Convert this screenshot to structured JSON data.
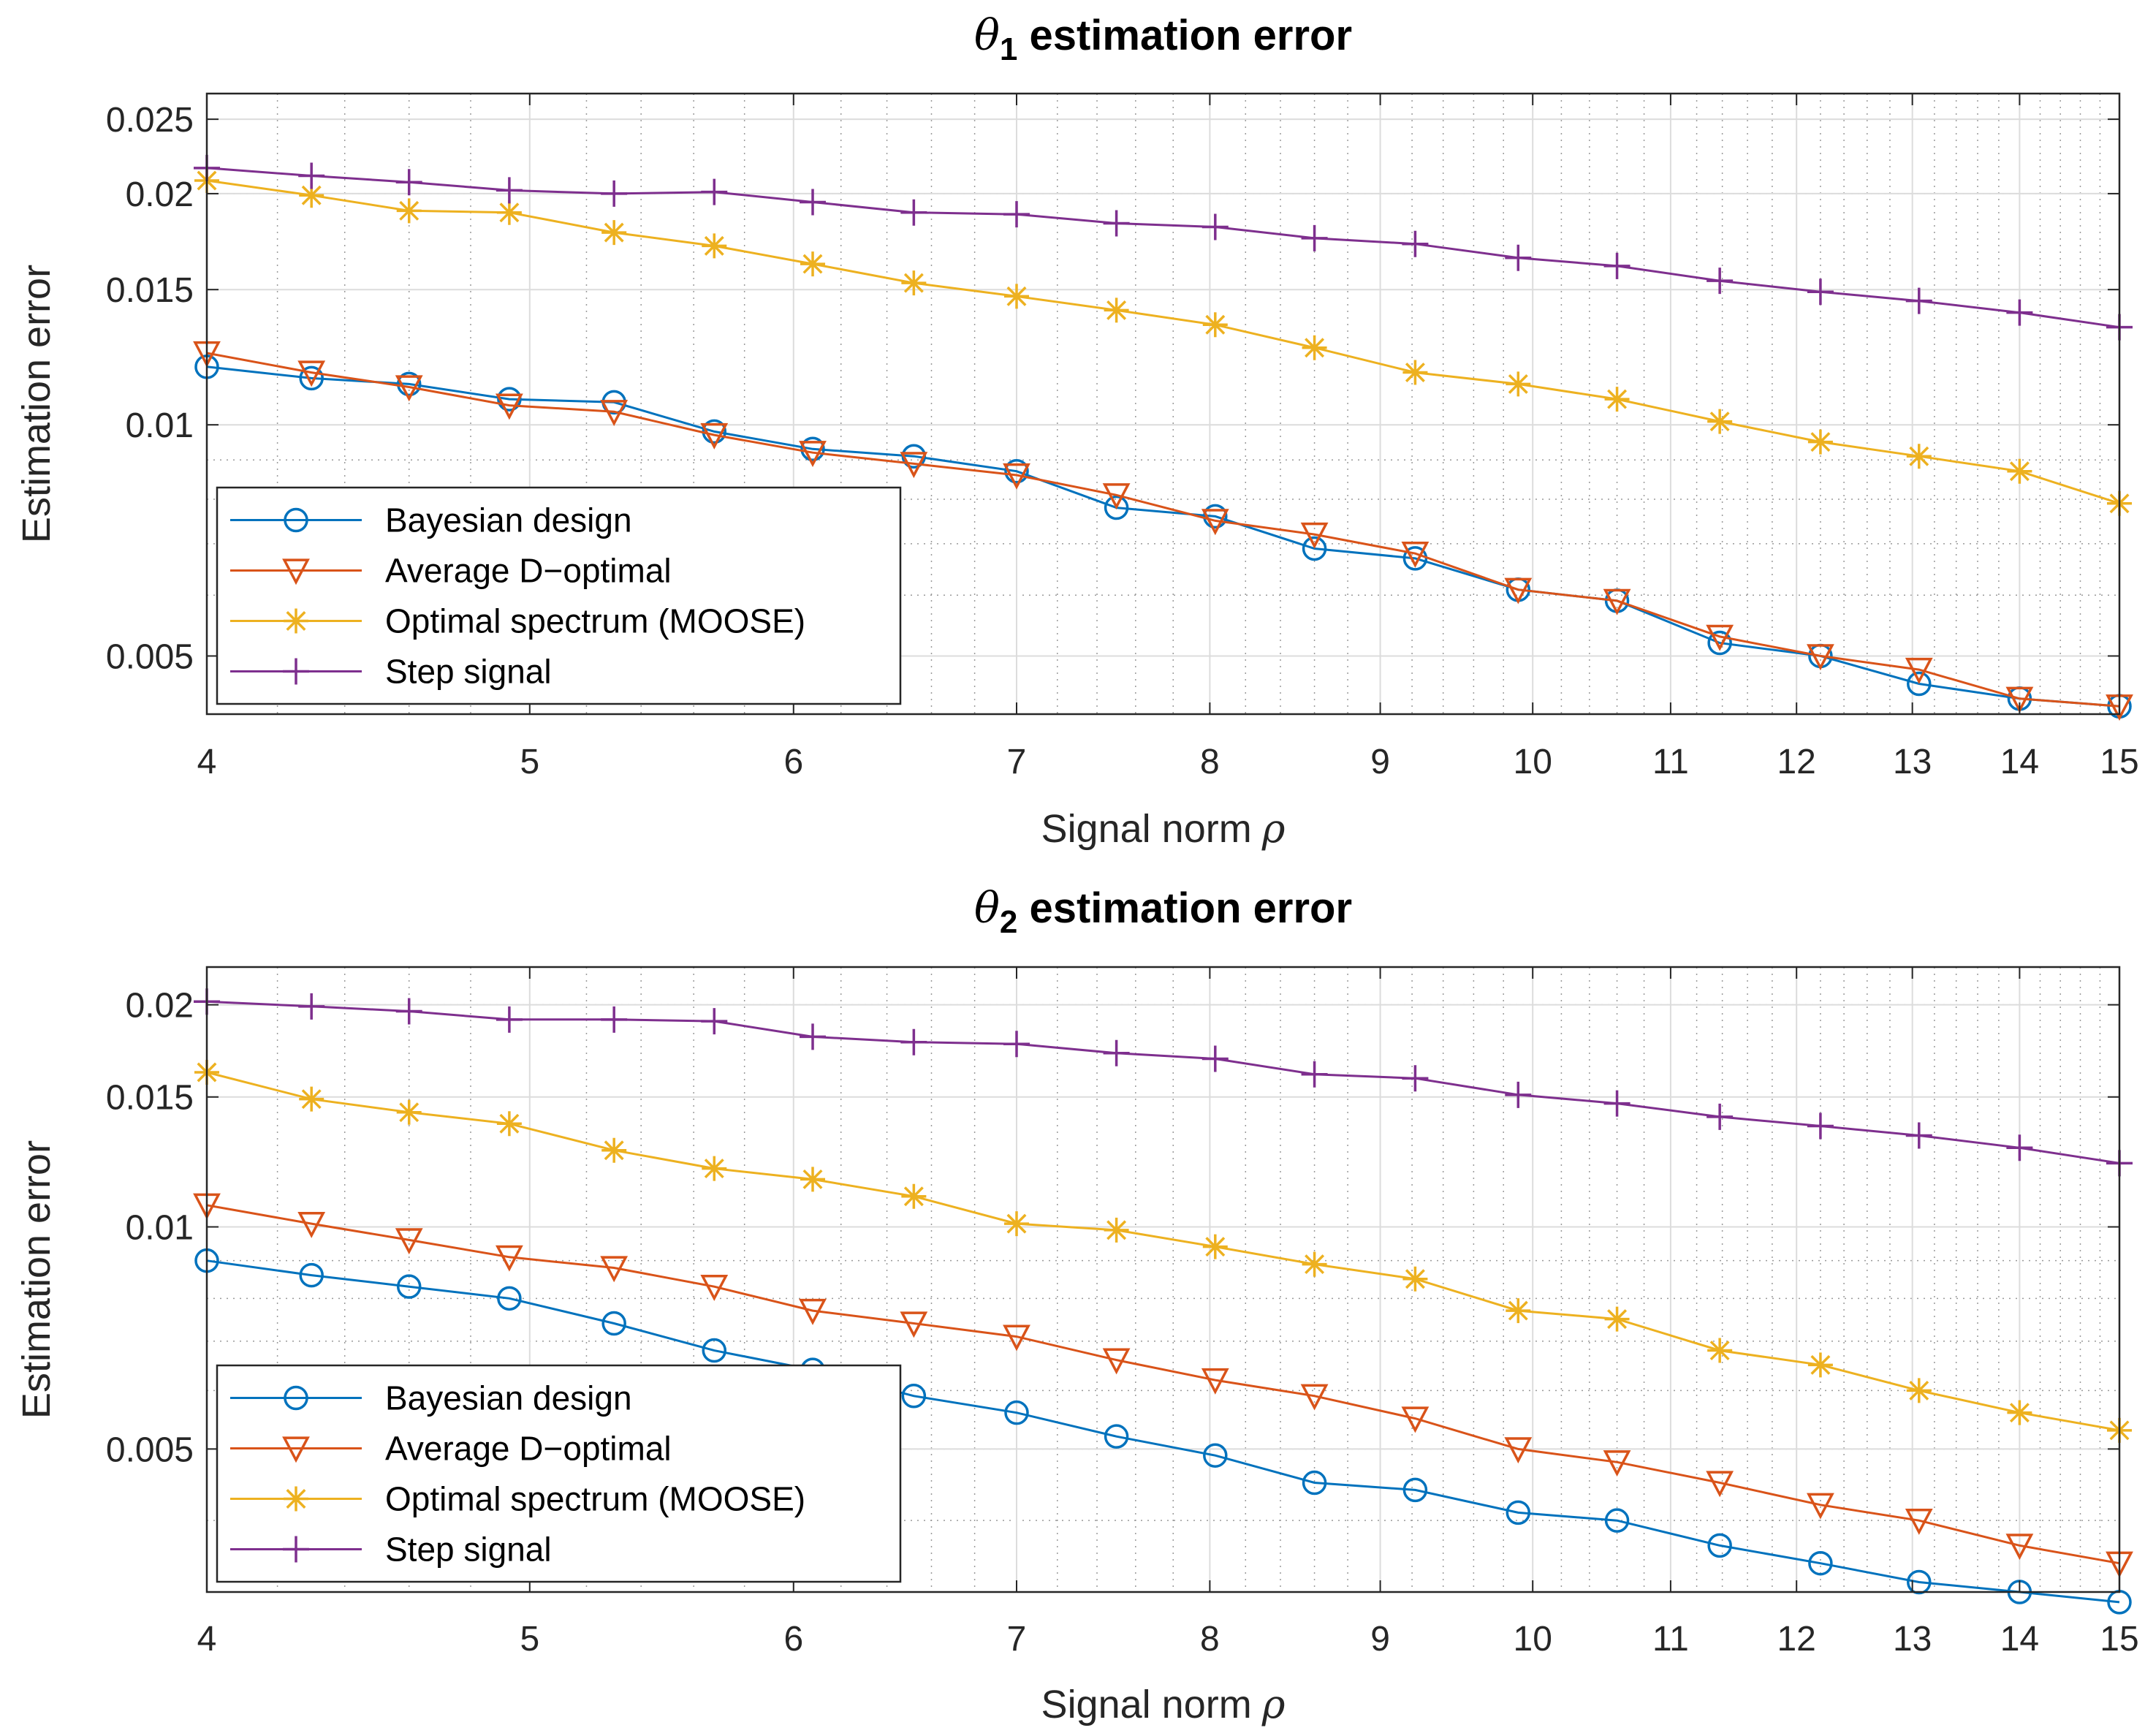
{
  "chart_data": [
    {
      "type": "line",
      "title": "θ1 estimation error",
      "title_symbol": "θ",
      "title_subscript": "1",
      "title_rest": " estimation error",
      "xlabel": "Signal norm",
      "xlabel_symbol": "ρ",
      "ylabel": "Estimation error",
      "xscale": "log",
      "yscale": "log",
      "xlim": [
        4,
        15
      ],
      "ylim": [
        0.0042,
        0.027
      ],
      "grid": true,
      "minor_grid": true,
      "legend_position": "bottom-left",
      "xticks": [
        4,
        5,
        6,
        7,
        8,
        9,
        10,
        11,
        12,
        13,
        14,
        15
      ],
      "xtick_labels": [
        "4",
        "5",
        "6",
        "7",
        "8",
        "9",
        "10",
        "11",
        "12",
        "13",
        "14",
        "15"
      ],
      "yticks": [
        0.005,
        0.01,
        0.015,
        0.02,
        0.025
      ],
      "ytick_labels": [
        "0.005",
        "0.01",
        "0.015",
        "0.02",
        "0.025"
      ],
      "x": [
        4.0,
        4.3,
        4.6,
        4.93,
        5.3,
        5.68,
        6.08,
        6.52,
        7.0,
        7.5,
        8.03,
        8.6,
        9.22,
        9.9,
        10.6,
        11.38,
        12.2,
        13.06,
        14.0,
        15.0
      ],
      "series": [
        {
          "name": "Bayesian design",
          "marker": "circle",
          "color": "#0072BD",
          "values": [
            0.0119,
            0.0115,
            0.0113,
            0.0108,
            0.0107,
            0.0098,
            0.0093,
            0.0091,
            0.0087,
            0.0078,
            0.0076,
            0.0069,
            0.0067,
            0.0061,
            0.0059,
            0.0052,
            0.005,
            0.0046,
            0.0044,
            0.0043
          ]
        },
        {
          "name": "Average D−optimal",
          "marker": "triangle-down",
          "color": "#D95319",
          "values": [
            0.0124,
            0.0117,
            0.0112,
            0.0106,
            0.0104,
            0.0097,
            0.0092,
            0.0089,
            0.0086,
            0.0081,
            0.0075,
            0.0072,
            0.0068,
            0.0061,
            0.0059,
            0.0053,
            0.005,
            0.0048,
            0.0044,
            0.0043
          ]
        },
        {
          "name": "Optimal spectrum (MOOSE)",
          "marker": "asterisk",
          "color": "#EDB120",
          "values": [
            0.0208,
            0.0199,
            0.019,
            0.0189,
            0.0178,
            0.0171,
            0.0162,
            0.0153,
            0.0147,
            0.0141,
            0.0135,
            0.0126,
            0.0117,
            0.0113,
            0.0108,
            0.0101,
            0.0095,
            0.0091,
            0.0087,
            0.0079
          ]
        },
        {
          "name": "Step signal",
          "marker": "plus",
          "color": "#7E2F8E",
          "values": [
            0.0216,
            0.0211,
            0.0207,
            0.0202,
            0.02,
            0.0201,
            0.0195,
            0.0189,
            0.0188,
            0.0183,
            0.0181,
            0.0175,
            0.0172,
            0.0165,
            0.0161,
            0.0154,
            0.0149,
            0.0145,
            0.014,
            0.0134
          ]
        }
      ]
    },
    {
      "type": "line",
      "title": "θ2 estimation error",
      "title_symbol": "θ",
      "title_subscript": "2",
      "title_rest": " estimation error",
      "xlabel": "Signal norm",
      "xlabel_symbol": "ρ",
      "ylabel": "Estimation error",
      "xscale": "log",
      "yscale": "log",
      "xlim": [
        4,
        15
      ],
      "ylim": [
        0.0032,
        0.0225
      ],
      "grid": true,
      "minor_grid": true,
      "legend_position": "bottom-left",
      "xticks": [
        4,
        5,
        6,
        7,
        8,
        9,
        10,
        11,
        12,
        13,
        14,
        15
      ],
      "xtick_labels": [
        "4",
        "5",
        "6",
        "7",
        "8",
        "9",
        "10",
        "11",
        "12",
        "13",
        "14",
        "15"
      ],
      "yticks": [
        0.005,
        0.01,
        0.015,
        0.02
      ],
      "ytick_labels": [
        "0.005",
        "0.01",
        "0.015",
        "0.02"
      ],
      "x": [
        4.0,
        4.3,
        4.6,
        4.93,
        5.3,
        5.68,
        6.08,
        6.52,
        7.0,
        7.5,
        8.03,
        8.6,
        9.22,
        9.9,
        10.6,
        11.38,
        12.2,
        13.06,
        14.0,
        15.0
      ],
      "series": [
        {
          "name": "Bayesian design",
          "marker": "circle",
          "color": "#0072BD",
          "values": [
            0.009,
            0.0086,
            0.0083,
            0.008,
            0.0074,
            0.0068,
            0.0064,
            0.0059,
            0.0056,
            0.0052,
            0.0049,
            0.0045,
            0.0044,
            0.0041,
            0.004,
            0.0037,
            0.0035,
            0.0033,
            0.0032,
            0.0031
          ]
        },
        {
          "name": "Average D−optimal",
          "marker": "triangle-down",
          "color": "#D95319",
          "values": [
            0.0107,
            0.0101,
            0.0096,
            0.0091,
            0.0088,
            0.0083,
            0.0077,
            0.0074,
            0.0071,
            0.0066,
            0.0062,
            0.0059,
            0.0055,
            0.005,
            0.0048,
            0.0045,
            0.0042,
            0.004,
            0.0037,
            0.0035
          ]
        },
        {
          "name": "Optimal spectrum (MOOSE)",
          "marker": "asterisk",
          "color": "#EDB120",
          "values": [
            0.0162,
            0.0149,
            0.0143,
            0.0138,
            0.0127,
            0.012,
            0.0116,
            0.011,
            0.0101,
            0.0099,
            0.0094,
            0.0089,
            0.0085,
            0.0077,
            0.0075,
            0.0068,
            0.0065,
            0.006,
            0.0056,
            0.0053
          ]
        },
        {
          "name": "Step signal",
          "marker": "plus",
          "color": "#7E2F8E",
          "values": [
            0.0202,
            0.0199,
            0.0196,
            0.0191,
            0.0191,
            0.019,
            0.0181,
            0.0178,
            0.0177,
            0.0172,
            0.0169,
            0.0161,
            0.0159,
            0.0151,
            0.0147,
            0.0141,
            0.0137,
            0.0133,
            0.0128,
            0.0122
          ]
        }
      ]
    }
  ]
}
